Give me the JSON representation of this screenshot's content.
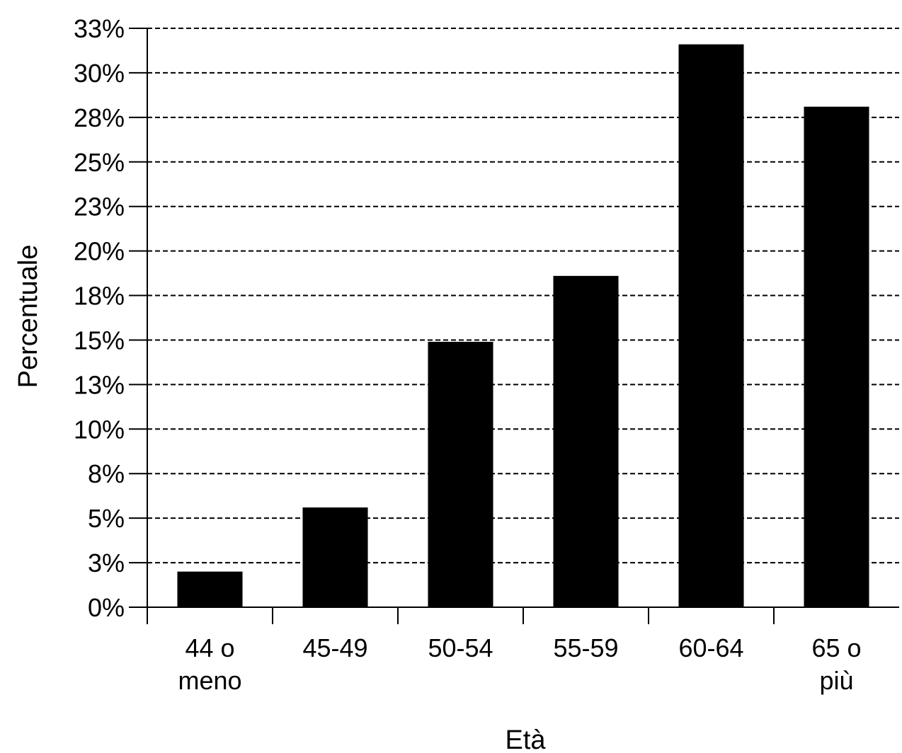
{
  "chart_data": {
    "type": "bar",
    "title": "",
    "xlabel": "Età",
    "ylabel": "Percentuale",
    "categories": [
      [
        "44 o",
        "meno"
      ],
      [
        "45-49"
      ],
      [
        "50-54"
      ],
      [
        "55-59"
      ],
      [
        "60-64"
      ],
      [
        "65 o",
        "più"
      ]
    ],
    "values": [
      2.0,
      5.6,
      14.9,
      18.6,
      31.6,
      28.1
    ],
    "y_ticks": [
      {
        "value": 0,
        "label": "0%"
      },
      {
        "value": 2.5,
        "label": "3%"
      },
      {
        "value": 5,
        "label": "5%"
      },
      {
        "value": 7.5,
        "label": "8%"
      },
      {
        "value": 10,
        "label": "10%"
      },
      {
        "value": 12.5,
        "label": "13%"
      },
      {
        "value": 15,
        "label": "15%"
      },
      {
        "value": 17.5,
        "label": "18%"
      },
      {
        "value": 20,
        "label": "20%"
      },
      {
        "value": 22.5,
        "label": "23%"
      },
      {
        "value": 25,
        "label": "25%"
      },
      {
        "value": 27.5,
        "label": "28%"
      },
      {
        "value": 30,
        "label": "30%"
      },
      {
        "value": 32.5,
        "label": "33%"
      }
    ],
    "ylim": [
      0,
      32.5
    ],
    "grid": "horizontal dashed",
    "legend": "none",
    "bar_color": "#000000"
  }
}
